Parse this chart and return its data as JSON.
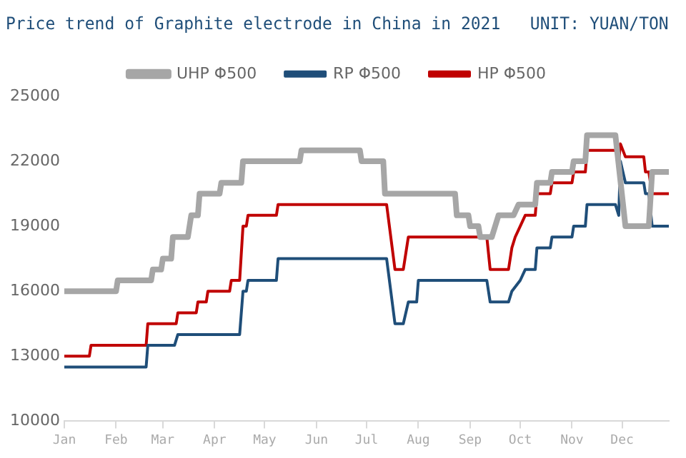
{
  "chart_data": {
    "type": "line",
    "title": "Price trend of Graphite electrode in China in 2021   UNIT: YUAN/TON",
    "xlim": [
      "--01-01",
      "--12-29"
    ],
    "xticks": [
      {
        "value": "--01-01",
        "label": "Jan"
      },
      {
        "value": "--02-01",
        "label": "Feb"
      },
      {
        "value": "--03-01",
        "label": "Mar"
      },
      {
        "value": "--04-01",
        "label": "Apr"
      },
      {
        "value": "--05-01",
        "label": "May"
      },
      {
        "value": "--06-01",
        "label": "Jun"
      },
      {
        "value": "--07-01",
        "label": "Jul"
      },
      {
        "value": "--08-01",
        "label": "Aug"
      },
      {
        "value": "--09-01",
        "label": "Sep"
      },
      {
        "value": "--10-01",
        "label": "Oct"
      },
      {
        "value": "--11-01",
        "label": "Nov"
      },
      {
        "value": "--12-01",
        "label": "Dec"
      }
    ],
    "ylim": [
      10000,
      25000
    ],
    "yticks": [
      10000,
      13000,
      16000,
      19000,
      22000,
      25000
    ],
    "grid": false,
    "legend": "top",
    "marker": "none",
    "line_style": "solid",
    "series": [
      {
        "name": "UHP Φ500",
        "color": "#a6a6a6",
        "x": [
          "--01-01",
          "--02-01",
          "--02-02",
          "--02-22",
          "--02-23",
          "--02-28",
          "--03-01",
          "--03-06",
          "--03-07",
          "--03-16",
          "--03-18",
          "--03-22",
          "--03-23",
          "--04-04",
          "--04-05",
          "--04-17",
          "--04-18",
          "--05-22",
          "--05-23",
          "--06-27",
          "--06-28",
          "--07-11",
          "--07-12",
          "--08-23",
          "--08-24",
          "--08-31",
          "--09-01",
          "--09-06",
          "--09-07",
          "--09-14",
          "--09-18",
          "--09-27",
          "--09-30",
          "--10-10",
          "--10-11",
          "--10-19",
          "--10-20",
          "--11-01",
          "--11-02",
          "--11-09",
          "--11-10",
          "--11-27",
          "--12-03",
          "--12-17",
          "--12-19",
          "--12-29"
        ],
        "values": [
          16000,
          16000,
          16500,
          16500,
          17000,
          17000,
          17500,
          17500,
          18500,
          18500,
          19500,
          19500,
          20500,
          20500,
          21000,
          21000,
          22000,
          22000,
          22500,
          22500,
          22000,
          22000,
          20500,
          20500,
          19500,
          19500,
          19000,
          19000,
          18500,
          18500,
          19500,
          19500,
          20000,
          20000,
          21000,
          21000,
          21500,
          21500,
          22000,
          22000,
          23200,
          23200,
          19000,
          19000,
          21500,
          21500
        ]
      },
      {
        "name": "RP Φ500",
        "color": "#1f4e79",
        "x": [
          "--01-01",
          "--02-19",
          "--02-20",
          "--03-08",
          "--03-10",
          "--04-16",
          "--04-18",
          "--04-20",
          "--04-21",
          "--05-08",
          "--05-09",
          "--07-13",
          "--07-18",
          "--07-23",
          "--07-26",
          "--07-31",
          "--08-01",
          "--09-11",
          "--09-13",
          "--09-24",
          "--09-26",
          "--10-01",
          "--10-04",
          "--10-10",
          "--10-11",
          "--10-19",
          "--10-20",
          "--11-01",
          "--11-02",
          "--11-09",
          "--11-10",
          "--11-27",
          "--11-29",
          "--11-30",
          "--12-03",
          "--12-14",
          "--12-15",
          "--12-17",
          "--12-19",
          "--12-29"
        ],
        "values": [
          12500,
          12500,
          13500,
          13500,
          14000,
          14000,
          16000,
          16000,
          16500,
          16500,
          17500,
          17500,
          14500,
          14500,
          15500,
          15500,
          16500,
          16500,
          15500,
          15500,
          16000,
          16500,
          17000,
          17000,
          18000,
          18000,
          18500,
          18500,
          19000,
          19000,
          20000,
          20000,
          19500,
          22000,
          21000,
          21000,
          20500,
          20500,
          19000,
          19000
        ]
      },
      {
        "name": "HP Φ500",
        "color": "#c00000",
        "x": [
          "--01-01",
          "--01-16",
          "--01-17",
          "--02-19",
          "--02-20",
          "--03-09",
          "--03-10",
          "--03-21",
          "--03-22",
          "--03-27",
          "--03-28",
          "--04-10",
          "--04-11",
          "--04-16",
          "--04-18",
          "--04-20",
          "--04-21",
          "--05-08",
          "--05-09",
          "--07-13",
          "--07-18",
          "--07-23",
          "--07-24",
          "--07-26",
          "--09-11",
          "--09-13",
          "--09-24",
          "--09-26",
          "--09-28",
          "--10-01",
          "--10-04",
          "--10-10",
          "--10-11",
          "--10-19",
          "--10-20",
          "--11-01",
          "--11-02",
          "--11-09",
          "--11-10",
          "--11-27",
          "--11-29",
          "--11-30",
          "--12-03",
          "--12-14",
          "--12-15",
          "--12-17",
          "--12-19",
          "--12-29"
        ],
        "values": [
          13000,
          13000,
          13500,
          13500,
          14500,
          14500,
          15000,
          15000,
          15500,
          15500,
          16000,
          16000,
          16500,
          16500,
          19000,
          19000,
          19500,
          19500,
          20000,
          20000,
          17000,
          17000,
          17500,
          18500,
          18500,
          17000,
          17000,
          18000,
          18500,
          19000,
          19500,
          19500,
          20500,
          20500,
          21000,
          21000,
          21500,
          21500,
          22500,
          22500,
          22000,
          22800,
          22200,
          22200,
          21500,
          21500,
          20500,
          20500
        ]
      }
    ]
  }
}
